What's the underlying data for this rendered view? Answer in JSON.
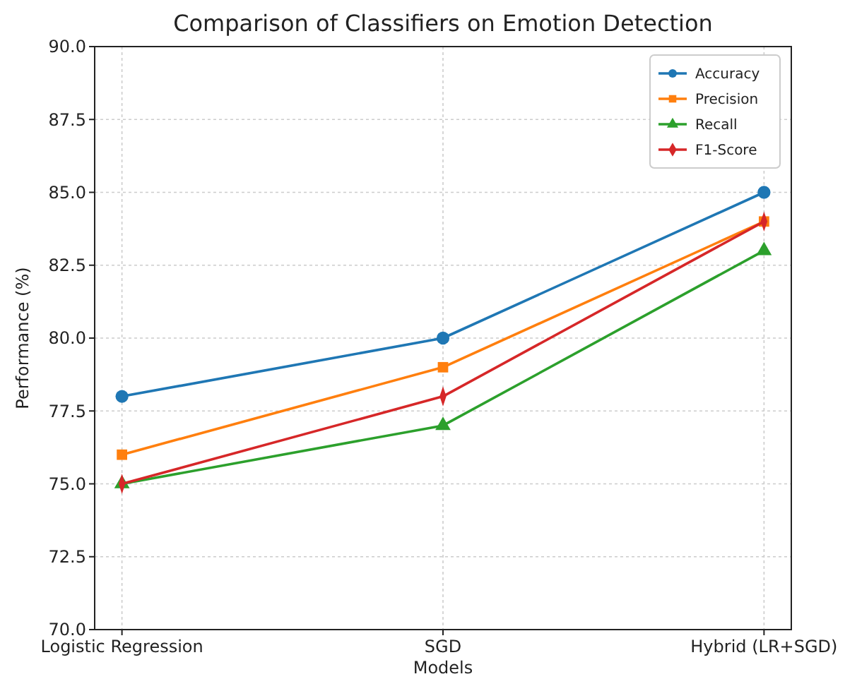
{
  "chart_data": {
    "type": "line",
    "title": "Comparison of Classifiers on Emotion Detection",
    "xlabel": "Models",
    "ylabel": "Performance (%)",
    "categories": [
      "Logistic Regression",
      "SGD",
      "Hybrid (LR+SGD)"
    ],
    "series": [
      {
        "name": "Accuracy",
        "color": "#1f77b4",
        "marker": "circle",
        "values": [
          78,
          80,
          85
        ]
      },
      {
        "name": "Precision",
        "color": "#ff7f0e",
        "marker": "square",
        "values": [
          76,
          79,
          84
        ]
      },
      {
        "name": "Recall",
        "color": "#2ca02c",
        "marker": "triangle",
        "values": [
          75,
          77,
          83
        ]
      },
      {
        "name": "F1-Score",
        "color": "#d62728",
        "marker": "diamond",
        "values": [
          75,
          78,
          84
        ]
      }
    ],
    "ylim": [
      70,
      90
    ],
    "yticks": [
      {
        "value": 70,
        "label": "70.0"
      },
      {
        "value": 72.5,
        "label": "72.5"
      },
      {
        "value": 75,
        "label": "75.0"
      },
      {
        "value": 77.5,
        "label": "77.5"
      },
      {
        "value": 80,
        "label": "80.0"
      },
      {
        "value": 82.5,
        "label": "82.5"
      },
      {
        "value": 85,
        "label": "85.0"
      },
      {
        "value": 87.5,
        "label": "87.5"
      },
      {
        "value": 90,
        "label": "90.0"
      }
    ],
    "grid": true,
    "legend": "top right",
    "line_style": "solid"
  }
}
